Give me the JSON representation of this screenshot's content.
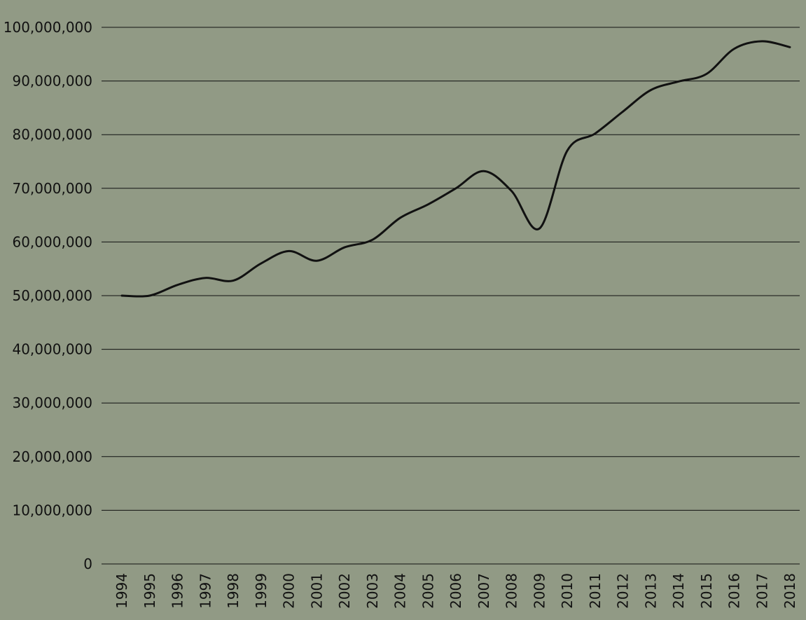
{
  "colors": {
    "background": "#919a85",
    "line": "#111111",
    "grid": "#111111",
    "text": "#111111"
  },
  "chart_data": {
    "type": "line",
    "title": "",
    "xlabel": "",
    "ylabel": "",
    "grid": "horizontal",
    "legend": "none",
    "ylim": [
      0,
      100000000
    ],
    "yticks": [
      0,
      10000000,
      20000000,
      30000000,
      40000000,
      50000000,
      60000000,
      70000000,
      80000000,
      90000000,
      100000000
    ],
    "ytick_labels": [
      "0",
      "10,000,000",
      "20,000,000",
      "30,000,000",
      "40,000,000",
      "50,000,000",
      "60,000,000",
      "70,000,000",
      "80,000,000",
      "90,000,000",
      "100,000,000"
    ],
    "x": [
      "1994",
      "1995",
      "1996",
      "1997",
      "1998",
      "1999",
      "2000",
      "2001",
      "2002",
      "2003",
      "2004",
      "2005",
      "2006",
      "2007",
      "2008",
      "2009",
      "2010",
      "2011",
      "2012",
      "2013",
      "2014",
      "2015",
      "2016",
      "2017",
      "2018"
    ],
    "series": [
      {
        "values": [
          50000000,
          50000000,
          52000000,
          53300000,
          52800000,
          56000000,
          58300000,
          56500000,
          59000000,
          60400000,
          64500000,
          67000000,
          70000000,
          73200000,
          69500000,
          62500000,
          77000000,
          80200000,
          84300000,
          88300000,
          89900000,
          91300000,
          96000000,
          97400000,
          96300000
        ]
      }
    ]
  }
}
